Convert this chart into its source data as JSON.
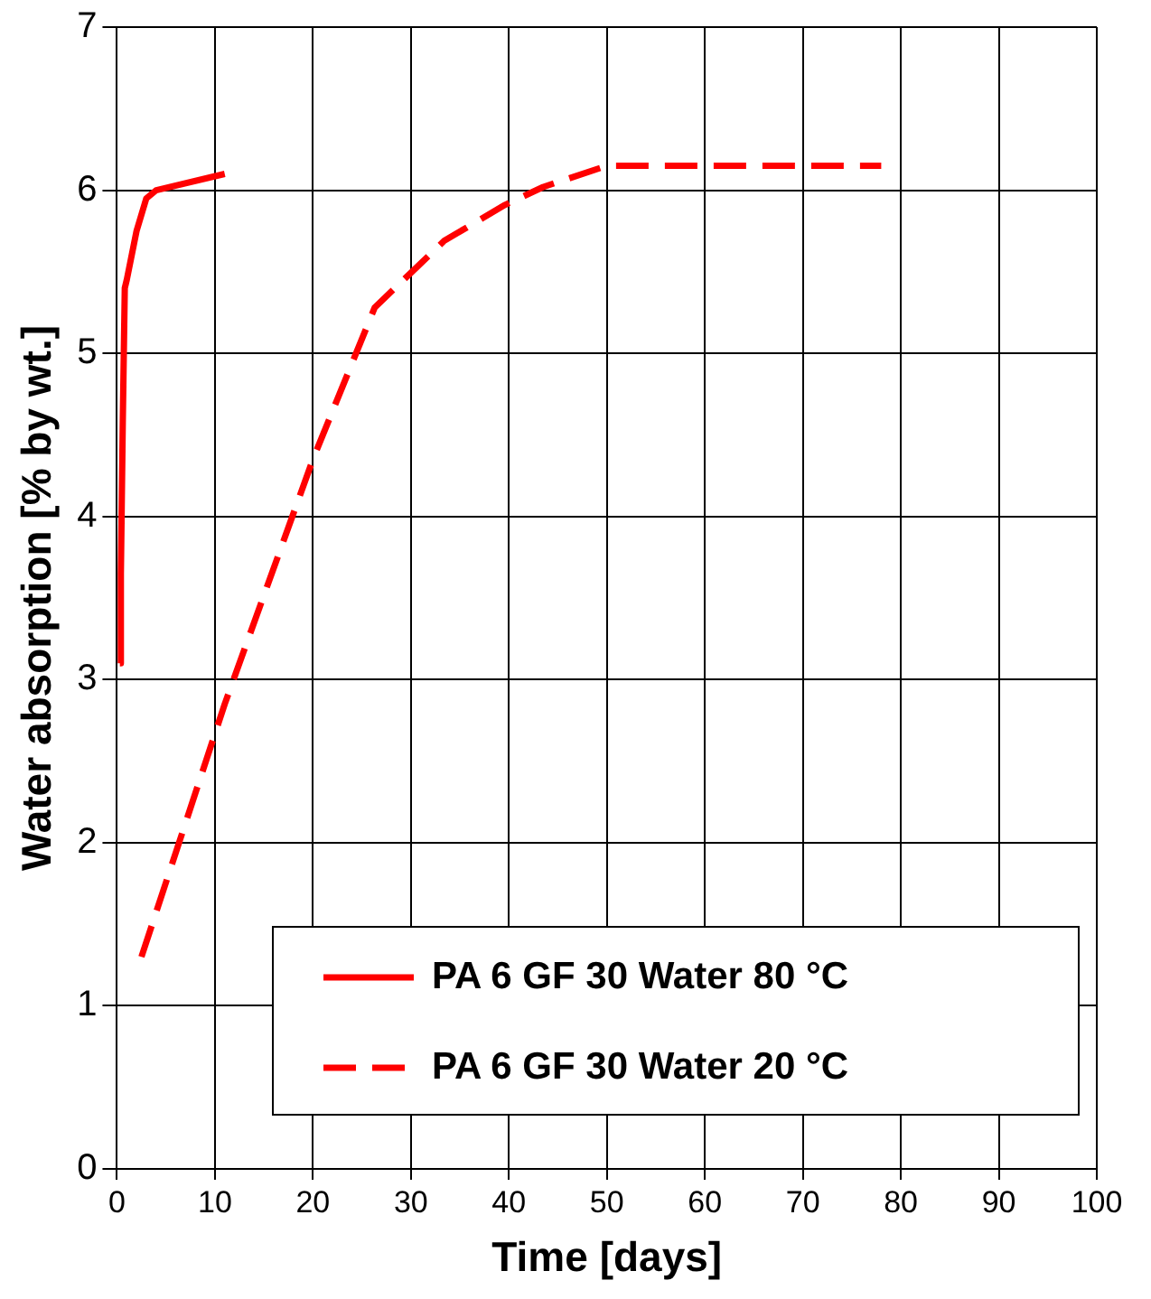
{
  "chart_data": {
    "type": "line",
    "xlabel": "Time [days]",
    "ylabel": "Water absorption [% by wt.]",
    "xlim": [
      0,
      100
    ],
    "xticks": [
      0,
      10,
      20,
      30,
      40,
      50,
      60,
      70,
      80,
      90,
      100
    ],
    "ylim": [
      0,
      7
    ],
    "yticks": [
      0,
      1,
      2,
      3,
      4,
      5,
      6,
      7
    ],
    "grid": true,
    "legend": "bottom right",
    "marker": "none",
    "series": [
      {
        "name": "PA 6 GF 30 Water 80 °C",
        "color": "#ff0000",
        "line_style": "solid",
        "x": [
          0.3,
          0.4,
          0.6,
          0.8,
          1,
          2,
          3,
          4,
          11
        ],
        "values": [
          3.1,
          3.65,
          4.6,
          5.4,
          5.45,
          5.75,
          5.95,
          6.0,
          6.1
        ]
      },
      {
        "name": "PA 6 GF 30 Water 20 °C",
        "color": "#ff0000",
        "line_style": "dashed",
        "x": [
          2.5,
          11,
          20,
          26.3,
          33.4,
          39.6,
          43.5,
          50,
          78
        ],
        "values": [
          1.3,
          2.85,
          4.35,
          5.28,
          5.69,
          5.91,
          6.02,
          6.15,
          6.15
        ]
      }
    ]
  }
}
